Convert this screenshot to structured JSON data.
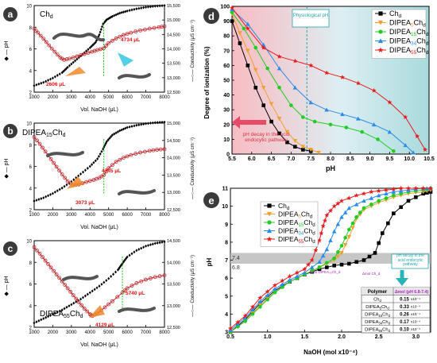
{
  "panels": {
    "a": {
      "letter": "a",
      "label": "Ch",
      "label_sub": "d",
      "xlabel": "Vol. NaOH (μL)",
      "ylabel": "pH",
      "y2label": "Conductivity (μS cm⁻¹)",
      "note1": "2606 μL",
      "note2": "4734 μL",
      "note3": ""
    },
    "b": {
      "letter": "b",
      "label": "DIPEA",
      "label_mid": "15",
      "label_tail": "Ch",
      "label_sub": "d",
      "xlabel": "Vol. NaOH (μL)",
      "ylabel": "pH",
      "y2label": "Conductivity (μS cm⁻¹)",
      "note1": "3073 μL",
      "note2": "4745 μL",
      "note3": ""
    },
    "c": {
      "letter": "c",
      "label": "DIPEA",
      "label_mid": "55",
      "label_tail": "Ch",
      "label_sub": "d",
      "xlabel": "Vol. NaOH (μL)",
      "ylabel": "pH",
      "y2label": "Conductivity (μS cm⁻¹)",
      "note1": "4129 μL",
      "note2": "5740 μL",
      "note3": ""
    },
    "d": {
      "letter": "d",
      "xlabel": "pH",
      "ylabel": "Degree of ionization (%)",
      "phys": "Physiological pH",
      "pathway": "pH decay in the acid endocytic pathway"
    },
    "e": {
      "letter": "e",
      "xlabel": "NaOH (mol x10⁻⁴)",
      "ylabel": "pH",
      "band_hi": "7.4",
      "band_lo": "6.8",
      "pathway": "pH decay in the acid endocytic pathway",
      "dmol1": "Δmol DIPEA₅₅Ch_d",
      "dmol2": "Δmol Ch_d",
      "table_head": [
        "Polymer",
        "Δmol (pH 6.8-7.4)"
      ],
      "table_rows": [
        {
          "poly": "Ch",
          "sub": "d",
          "pre": "",
          "val": "0.15",
          "exp": "x10⁻⁴"
        },
        {
          "poly": "DIPEA",
          "sub": "5",
          "pre": "Ch",
          "val": "0.33",
          "exp": "x10⁻⁴"
        },
        {
          "poly": "DIPEA",
          "sub": "15",
          "pre": "Ch",
          "val": "0.26",
          "exp": "x10⁻⁴"
        },
        {
          "poly": "DIPEA",
          "sub": "34",
          "pre": "Ch",
          "val": "0.17",
          "exp": "x10⁻⁴"
        },
        {
          "poly": "DIPEA",
          "sub": "55",
          "pre": "Ch",
          "val": "0.10",
          "exp": "x10⁻⁴"
        }
      ]
    }
  },
  "colors": {
    "ch": "#000000",
    "d5": "#f0a030",
    "d15": "#22cc22",
    "d34": "#2b8be8",
    "d55": "#e61c1c",
    "cond": "#c0262a",
    "ph": "#000000",
    "band": "#b8b8b8"
  },
  "legend": [
    {
      "name": "Ch",
      "sub": "d",
      "mid": "",
      "key": "ch",
      "marker": "square"
    },
    {
      "name": "DIPEA",
      "sub": "d",
      "mid": "5",
      "key": "d5",
      "marker": "tri-down"
    },
    {
      "name": "DIPEA",
      "sub": "d",
      "mid": "15",
      "key": "d15",
      "marker": "circle"
    },
    {
      "name": "DIPEA",
      "sub": "d",
      "mid": "34",
      "key": "d34",
      "marker": "tri-up"
    },
    {
      "name": "DIPEA",
      "sub": "d",
      "mid": "55",
      "key": "d55",
      "marker": "star"
    }
  ],
  "chart_data": [
    {
      "type": "line",
      "panel": "a",
      "xlim": [
        1000,
        8000
      ],
      "ylim": [
        2,
        10
      ],
      "y2lim": [
        12500,
        15500
      ],
      "xticks": [
        1000,
        2000,
        3000,
        4000,
        5000,
        6000,
        7000,
        8000
      ],
      "yticks": [
        2,
        4,
        6,
        8,
        10
      ],
      "y2ticks": [
        12500,
        13000,
        13500,
        14000,
        14500,
        15000,
        15500
      ],
      "series": [
        {
          "axis": "y",
          "style": "ph",
          "x": [
            1000,
            1500,
            2000,
            2500,
            2800,
            3200,
            3600,
            4000,
            4300,
            4500,
            4700,
            4900,
            5200,
            5600,
            6000,
            6500,
            7000,
            7500,
            8000
          ],
          "y": [
            2.6,
            2.9,
            3.3,
            3.8,
            4.3,
            4.9,
            5.5,
            6.1,
            6.6,
            7.3,
            8.3,
            8.7,
            9.0,
            9.3,
            9.5,
            9.7,
            9.85,
            9.95,
            10.0
          ]
        },
        {
          "axis": "y2",
          "style": "cond",
          "x": [
            1000,
            1200,
            1500,
            1800,
            2100,
            2400,
            2606,
            2900,
            3300,
            3700,
            4100,
            4400,
            4734,
            5000,
            5400,
            5800,
            6200,
            6700,
            7200,
            7700,
            8000
          ],
          "y": [
            14700,
            14560,
            14350,
            14120,
            13900,
            13700,
            13620,
            13660,
            13740,
            13820,
            13900,
            13960,
            14020,
            14200,
            14360,
            14480,
            14560,
            14640,
            14700,
            14750,
            14780
          ]
        }
      ]
    },
    {
      "type": "line",
      "panel": "b",
      "xlim": [
        1000,
        8000
      ],
      "ylim": [
        2,
        10
      ],
      "y2lim": [
        12500,
        15000
      ],
      "xticks": [
        1000,
        2000,
        3000,
        4000,
        5000,
        6000,
        7000,
        8000
      ],
      "yticks": [
        2,
        4,
        6,
        8,
        10
      ],
      "y2ticks": [
        12500,
        13000,
        13500,
        14000,
        14500,
        15000
      ],
      "series": [
        {
          "axis": "y",
          "style": "ph",
          "x": [
            1000,
            1500,
            2000,
            2500,
            3000,
            3500,
            4000,
            4400,
            4700,
            4900,
            5200,
            5600,
            6000,
            6500,
            7000,
            7500,
            8000
          ],
          "y": [
            2.8,
            3.1,
            3.5,
            4.0,
            4.6,
            5.3,
            6.0,
            6.7,
            7.6,
            8.3,
            8.9,
            9.3,
            9.6,
            9.8,
            9.95,
            10.05,
            10.1
          ]
        },
        {
          "axis": "y2",
          "style": "cond",
          "x": [
            1000,
            1300,
            1600,
            1900,
            2200,
            2500,
            2800,
            3073,
            3400,
            3800,
            4200,
            4500,
            4745,
            5000,
            5400,
            5800,
            6200,
            6700,
            7200,
            7600,
            8000
          ],
          "y": [
            14600,
            14400,
            14180,
            13960,
            13740,
            13520,
            13320,
            13200,
            13230,
            13300,
            13360,
            13420,
            13500,
            13700,
            13880,
            14000,
            14080,
            14150,
            14200,
            14230,
            14250
          ]
        }
      ]
    },
    {
      "type": "line",
      "panel": "c",
      "xlim": [
        1000,
        8000
      ],
      "ylim": [
        2,
        10
      ],
      "y2lim": [
        12500,
        14500
      ],
      "xticks": [
        1000,
        2000,
        3000,
        4000,
        5000,
        6000,
        7000,
        8000
      ],
      "yticks": [
        2,
        4,
        6,
        8,
        10
      ],
      "y2ticks": [
        12500,
        13000,
        13500,
        14000,
        14500
      ],
      "series": [
        {
          "axis": "y",
          "style": "ph",
          "x": [
            1000,
            1500,
            2000,
            2500,
            3000,
            3500,
            4000,
            4500,
            5000,
            5500,
            5740,
            6000,
            6500,
            7000,
            7500,
            8000
          ],
          "y": [
            2.4,
            2.8,
            3.2,
            3.6,
            4.1,
            4.6,
            5.2,
            5.8,
            6.5,
            7.3,
            7.9,
            8.5,
            9.1,
            9.5,
            9.75,
            9.9
          ]
        },
        {
          "axis": "y2",
          "style": "cond",
          "x": [
            1000,
            1300,
            1600,
            1900,
            2200,
            2500,
            2800,
            3100,
            3400,
            3700,
            4000,
            4129,
            4400,
            4800,
            5200,
            5740,
            6000,
            6500,
            7000,
            7500,
            8000
          ],
          "y": [
            14350,
            14200,
            14040,
            13880,
            13720,
            13560,
            13400,
            13240,
            13080,
            12930,
            12800,
            12760,
            12820,
            12960,
            13100,
            13300,
            13400,
            13520,
            13600,
            13660,
            13700
          ]
        }
      ]
    },
    {
      "type": "line",
      "panel": "d",
      "xlim": [
        5.5,
        10.5
      ],
      "ylim": [
        0,
        100
      ],
      "xticks": [
        5.5,
        6.0,
        6.5,
        7.0,
        7.5,
        8.0,
        8.5,
        9.0,
        9.5,
        10.0,
        10.5
      ],
      "yticks": [
        0,
        10,
        20,
        30,
        40,
        50,
        60,
        70,
        80,
        90,
        100
      ],
      "phys_x": 7.4,
      "series": [
        {
          "name": "Ch_d",
          "key": "ch",
          "marker": "square",
          "x": [
            5.5,
            5.7,
            5.9,
            6.1,
            6.3,
            6.5,
            6.7,
            6.9,
            7.1,
            7.3,
            7.5
          ],
          "y": [
            90,
            75,
            60,
            45,
            33,
            22,
            14,
            8,
            5,
            3,
            2
          ]
        },
        {
          "name": "DIPEA5Ch_d",
          "key": "d5",
          "marker": "tri-down",
          "x": [
            5.5,
            5.7,
            5.9,
            6.1,
            6.3,
            6.5,
            6.7,
            6.9,
            7.1,
            7.3,
            7.5,
            7.7
          ],
          "y": [
            95,
            82,
            70,
            57,
            45,
            34,
            24,
            15,
            9,
            5,
            3,
            1
          ]
        },
        {
          "name": "DIPEA15Ch_d",
          "key": "d15",
          "marker": "circle",
          "x": [
            5.5,
            5.8,
            6.1,
            6.4,
            6.7,
            7.0,
            7.3,
            7.6,
            8.0,
            8.4,
            8.8,
            9.2,
            9.6
          ],
          "y": [
            96,
            85,
            72,
            58,
            45,
            33,
            25,
            22,
            20,
            18,
            15,
            10,
            2
          ]
        },
        {
          "name": "DIPEA34Ch_d",
          "key": "d34",
          "marker": "tri-up",
          "x": [
            5.5,
            5.9,
            6.3,
            6.7,
            7.1,
            7.5,
            7.9,
            8.3,
            8.7,
            9.1,
            9.5,
            9.9,
            10.1
          ],
          "y": [
            98,
            88,
            74,
            58,
            45,
            35,
            30,
            27,
            24,
            20,
            15,
            6,
            1
          ]
        },
        {
          "name": "DIPEA55Ch_d",
          "key": "d55",
          "marker": "star",
          "x": [
            5.5,
            5.9,
            6.3,
            6.7,
            7.1,
            7.5,
            7.9,
            8.3,
            8.7,
            9.1,
            9.5,
            9.9,
            10.2,
            10.4
          ],
          "y": [
            99,
            85,
            72,
            66,
            63,
            60,
            55,
            52,
            48,
            43,
            35,
            25,
            12,
            3
          ]
        }
      ]
    },
    {
      "type": "line",
      "panel": "e",
      "xlim": [
        0.5,
        3.2
      ],
      "ylim": [
        3,
        11
      ],
      "xticks": [
        0.5,
        1.0,
        1.5,
        2.0,
        2.5,
        3.0
      ],
      "yticks": [
        3,
        4,
        5,
        6,
        7,
        8,
        9,
        10,
        11
      ],
      "band": [
        6.8,
        7.4
      ],
      "series": [
        {
          "name": "Ch_d",
          "key": "ch",
          "marker": "square",
          "x": [
            0.5,
            0.7,
            0.9,
            1.1,
            1.3,
            1.5,
            1.7,
            1.9,
            2.1,
            2.3,
            2.45,
            2.55,
            2.7,
            2.9,
            3.1,
            3.2
          ],
          "y": [
            3.0,
            3.7,
            4.6,
            5.3,
            5.8,
            6.2,
            6.5,
            6.7,
            6.8,
            7.0,
            7.4,
            8.5,
            9.6,
            10.3,
            10.7,
            10.8
          ]
        },
        {
          "name": "DIPEA5Ch_d",
          "key": "d5",
          "marker": "tri-down",
          "x": [
            0.5,
            0.7,
            0.9,
            1.1,
            1.3,
            1.5,
            1.7,
            1.9,
            2.0,
            2.1,
            2.2,
            2.3,
            2.5,
            2.7,
            2.9,
            3.1,
            3.2
          ],
          "y": [
            3.0,
            3.6,
            4.5,
            5.2,
            5.8,
            6.2,
            6.6,
            7.0,
            7.4,
            8.3,
            9.3,
            9.8,
            10.2,
            10.5,
            10.7,
            10.8,
            10.9
          ]
        },
        {
          "name": "DIPEA15Ch_d",
          "key": "d15",
          "marker": "circle",
          "x": [
            0.5,
            0.7,
            0.9,
            1.1,
            1.3,
            1.5,
            1.7,
            1.9,
            2.0,
            2.1,
            2.2,
            2.3,
            2.5,
            2.7,
            2.9,
            3.1,
            3.2
          ],
          "y": [
            3.0,
            3.6,
            4.4,
            5.2,
            5.8,
            6.2,
            6.6,
            7.1,
            7.8,
            8.7,
            9.4,
            9.9,
            10.3,
            10.6,
            10.8,
            10.9,
            11.0
          ]
        },
        {
          "name": "DIPEA34Ch_d",
          "key": "d34",
          "marker": "tri-up",
          "x": [
            0.5,
            0.7,
            0.9,
            1.1,
            1.3,
            1.5,
            1.7,
            1.8,
            1.9,
            2.0,
            2.1,
            2.3,
            2.5,
            2.7,
            2.9,
            3.1,
            3.2
          ],
          "y": [
            3.1,
            3.8,
            4.7,
            5.4,
            5.9,
            6.3,
            6.9,
            7.6,
            8.6,
            9.4,
            9.9,
            10.3,
            10.6,
            10.8,
            10.9,
            11.0,
            11.0
          ]
        },
        {
          "name": "DIPEA55Ch_d",
          "key": "d55",
          "marker": "star",
          "x": [
            0.5,
            0.7,
            0.9,
            1.1,
            1.3,
            1.5,
            1.6,
            1.7,
            1.75,
            1.8,
            1.9,
            2.0,
            2.2,
            2.4,
            2.6,
            2.8,
            3.0,
            3.2
          ],
          "y": [
            3.2,
            3.9,
            4.9,
            5.6,
            6.1,
            6.5,
            7.0,
            8.1,
            8.9,
            9.5,
            10.0,
            10.3,
            10.6,
            10.8,
            10.9,
            11.0,
            11.0,
            11.0
          ]
        }
      ]
    }
  ]
}
